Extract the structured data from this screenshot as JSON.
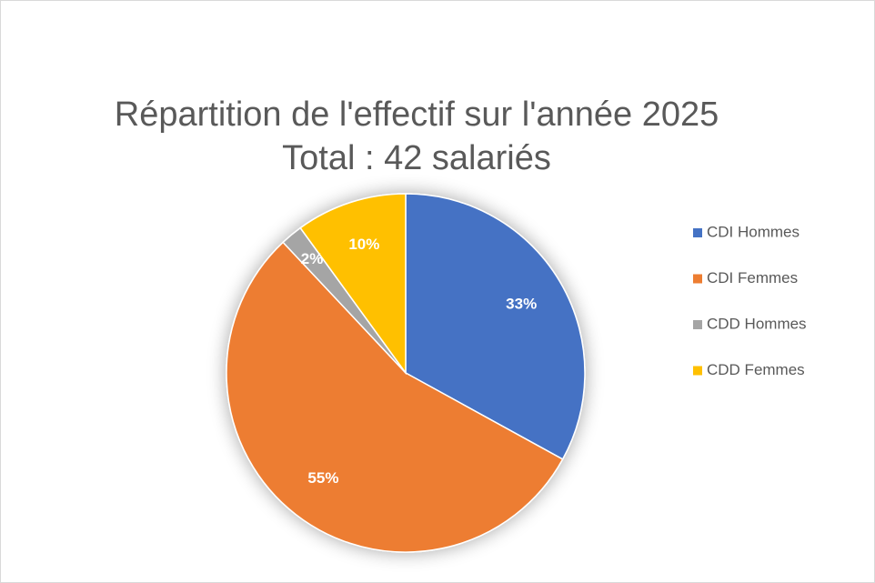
{
  "chart_data": {
    "type": "pie",
    "title": "Répartition de l'effectif sur l'année 2025",
    "subtitle": "Total : 42 salariés",
    "categories": [
      "CDI Hommes",
      "CDI Femmes",
      "CDD Hommes",
      "CDD Femmes"
    ],
    "values": [
      33,
      55,
      2,
      10
    ],
    "value_labels": [
      "33%",
      "55%",
      "2%",
      "10%"
    ],
    "colors": [
      "#4472c4",
      "#ed7d31",
      "#a5a5a5",
      "#ffc000"
    ],
    "legend": "right"
  }
}
